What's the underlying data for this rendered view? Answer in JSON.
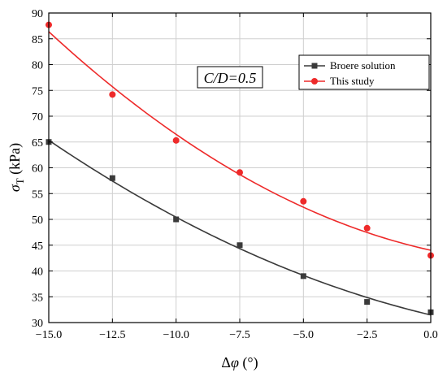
{
  "chart_data": {
    "type": "line",
    "title": "",
    "xlabel": "Δφ (°)",
    "ylabel": "σT (kPa)",
    "xlim": [
      -15.0,
      0.0
    ],
    "ylim": [
      30,
      90
    ],
    "xticks": [
      -15.0,
      -12.5,
      -10.0,
      -7.5,
      -5.0,
      -2.5,
      0.0
    ],
    "xtick_labels": [
      "−15.0",
      "−12.5",
      "−10.0",
      "−7.5",
      "−5.0",
      "−2.5",
      "0.0"
    ],
    "yticks": [
      30,
      35,
      40,
      45,
      50,
      55,
      60,
      65,
      70,
      75,
      80,
      85,
      90
    ],
    "grid": true,
    "legend_position": "top-right",
    "annotation": "C/D=0.5",
    "series": [
      {
        "name": "Broere solution",
        "color": "#3a3a3a",
        "marker": "square",
        "x": [
          -15.0,
          -12.5,
          -10.0,
          -7.5,
          -5.0,
          -2.5,
          0.0
        ],
        "y": [
          65,
          58,
          50,
          45,
          39,
          34,
          32
        ]
      },
      {
        "name": "This study",
        "color": "#ee2a2a",
        "marker": "circle",
        "x": [
          -15.0,
          -12.5,
          -10.0,
          -7.5,
          -5.0,
          -2.5,
          0.0
        ],
        "y": [
          87.7,
          74.2,
          65.3,
          59.1,
          53.5,
          48.3,
          43
        ]
      }
    ]
  }
}
